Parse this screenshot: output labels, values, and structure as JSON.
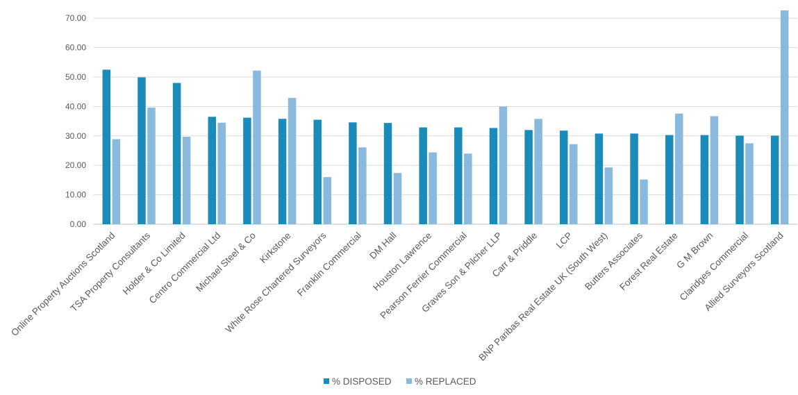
{
  "chart_data": {
    "type": "bar",
    "categories": [
      "Online Property Auctions Scotland",
      "TSA Property Consultants",
      "Holder & Co Limited",
      "Centro Commercial Ltd",
      "Michael Steel & Co",
      "Kirkstone",
      "White Rose Chartered Surveyors",
      "Franklin Commercial",
      "DM Hall",
      "Houston Lawrence",
      "Pearson Ferrier Commercial",
      "Graves Son & Pilcher LLP",
      "Carr & Priddle",
      "LCP",
      "BNP Paribas Real Estate UK (South West)",
      "Butters Associates",
      "Forest Real Estate",
      "G M Brown",
      "Claridges Commercial",
      "Allied Surveyors Scotland"
    ],
    "series": [
      {
        "name": "% DISPOSED",
        "color": "#1B8BBA",
        "values": [
          52.5,
          49.9,
          48.0,
          36.5,
          36.2,
          35.8,
          35.5,
          34.6,
          34.4,
          32.9,
          32.9,
          32.7,
          32.0,
          31.8,
          30.8,
          30.8,
          30.3,
          30.3,
          30.1,
          30.1
        ]
      },
      {
        "name": "% REPLACED",
        "color": "#8AB9DE",
        "values": [
          28.9,
          39.6,
          29.7,
          34.5,
          52.2,
          42.9,
          16.0,
          26.1,
          17.4,
          24.4,
          24.0,
          40.0,
          35.8,
          27.2,
          19.3,
          15.2,
          37.6,
          36.7,
          27.5,
          73.0
        ]
      }
    ],
    "ylim": [
      0,
      70
    ],
    "yticks": [
      "0.00",
      "10.00",
      "20.00",
      "30.00",
      "40.00",
      "50.00",
      "60.00",
      "70.00"
    ],
    "grid": true,
    "legend": "bottom-center",
    "title": "",
    "xlabel": "",
    "ylabel": ""
  }
}
